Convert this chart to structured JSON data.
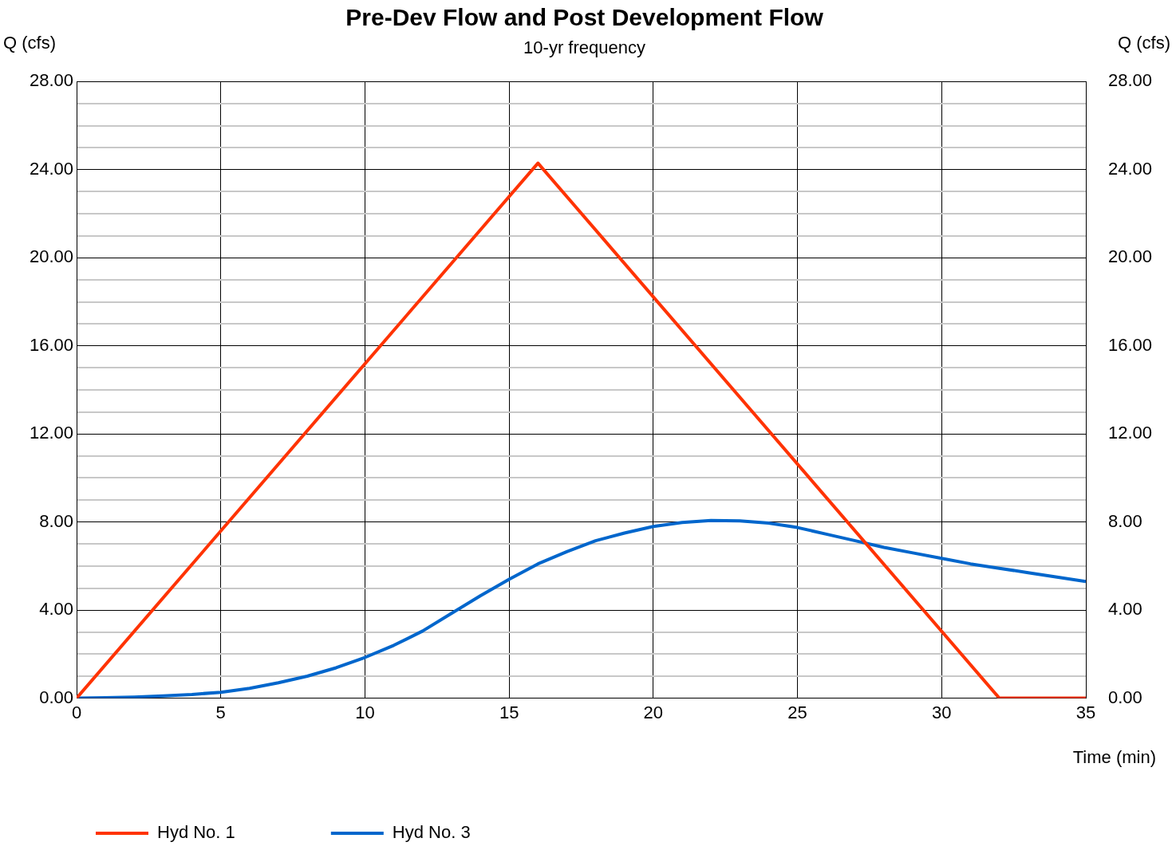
{
  "chart_data": {
    "type": "line",
    "title": "Pre-Dev Flow and Post Development Flow",
    "subtitle": "10-yr frequency",
    "xlabel": "Time (min)",
    "ylabel": "Q (cfs)",
    "y2label": "Q (cfs)",
    "xlim": [
      0,
      35
    ],
    "xticks": [
      0,
      5,
      10,
      15,
      20,
      25,
      30,
      35
    ],
    "ylim": [
      0,
      28
    ],
    "yticks": [
      {
        "value": 0,
        "label": "0.00"
      },
      {
        "value": 1,
        "label": null
      },
      {
        "value": 2,
        "label": null
      },
      {
        "value": 3,
        "label": null
      },
      {
        "value": 4,
        "label": "4.00"
      },
      {
        "value": 5,
        "label": null
      },
      {
        "value": 6,
        "label": null
      },
      {
        "value": 7,
        "label": null
      },
      {
        "value": 8,
        "label": "8.00"
      },
      {
        "value": 9,
        "label": null
      },
      {
        "value": 10,
        "label": null
      },
      {
        "value": 11,
        "label": null
      },
      {
        "value": 12,
        "label": "12.00"
      },
      {
        "value": 13,
        "label": null
      },
      {
        "value": 14,
        "label": null
      },
      {
        "value": 15,
        "label": null
      },
      {
        "value": 16,
        "label": "16.00"
      },
      {
        "value": 17,
        "label": null
      },
      {
        "value": 18,
        "label": null
      },
      {
        "value": 19,
        "label": null
      },
      {
        "value": 20,
        "label": "20.00"
      },
      {
        "value": 21,
        "label": null
      },
      {
        "value": 22,
        "label": null
      },
      {
        "value": 23,
        "label": null
      },
      {
        "value": 24,
        "label": "24.00"
      },
      {
        "value": 25,
        "label": null
      },
      {
        "value": 26,
        "label": null
      },
      {
        "value": 27,
        "label": null
      },
      {
        "value": 28,
        "label": "28.00"
      }
    ],
    "y2lim": [
      0,
      28
    ],
    "y2ticks": [
      {
        "value": 0,
        "label": "0.00"
      },
      {
        "value": 4,
        "label": "4.00"
      },
      {
        "value": 8,
        "label": "8.00"
      },
      {
        "value": 12,
        "label": "12.00"
      },
      {
        "value": 16,
        "label": "16.00"
      },
      {
        "value": 20,
        "label": "20.00"
      },
      {
        "value": 24,
        "label": "24.00"
      },
      {
        "value": 28,
        "label": "28.00"
      }
    ],
    "grid": true,
    "legend": "bottom left",
    "marker": "none",
    "line_style": "solid",
    "series": [
      {
        "name": "Hyd No. 1",
        "color": "#ff3300",
        "x": [
          0,
          16,
          32,
          35
        ],
        "values": [
          0,
          24.3,
          0,
          0
        ]
      },
      {
        "name": "Hyd No. 3",
        "color": "#0066cc",
        "x": [
          0,
          1,
          2,
          3,
          4,
          5,
          6,
          7,
          8,
          9,
          10,
          11,
          12,
          13,
          14,
          15,
          16,
          17,
          18,
          19,
          20,
          21,
          22,
          23,
          24,
          25,
          26,
          27,
          28,
          29,
          30,
          31,
          32,
          33,
          34,
          35
        ],
        "values": [
          0,
          0.02,
          0.05,
          0.1,
          0.17,
          0.27,
          0.45,
          0.7,
          1.0,
          1.38,
          1.85,
          2.4,
          3.05,
          3.85,
          4.65,
          5.4,
          6.1,
          6.65,
          7.15,
          7.5,
          7.8,
          7.98,
          8.07,
          8.05,
          7.95,
          7.75,
          7.45,
          7.15,
          6.85,
          6.6,
          6.35,
          6.1,
          5.9,
          5.7,
          5.5,
          5.3
        ]
      }
    ]
  }
}
